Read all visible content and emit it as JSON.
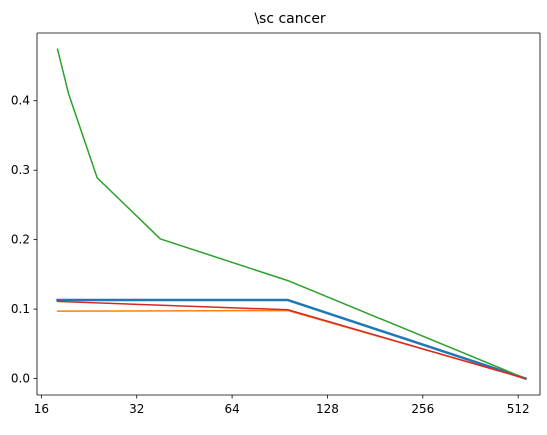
{
  "chart_data": {
    "type": "line",
    "title": "\\sc cancer",
    "xlabel": "",
    "ylabel": "",
    "x_scale": "log2",
    "xlim": [
      15.5,
      600
    ],
    "ylim": [
      -0.0237,
      0.4975
    ],
    "x_ticks": [
      16,
      32,
      64,
      128,
      256,
      512
    ],
    "x_tick_labels": [
      "16",
      "32",
      "64",
      "128",
      "256",
      "512"
    ],
    "y_ticks": [
      0.0,
      0.1,
      0.2,
      0.3,
      0.4
    ],
    "y_tick_labels": [
      "0.0",
      "0.1",
      "0.2",
      "0.3",
      "0.4"
    ],
    "grid": false,
    "legend": "none",
    "series": [
      {
        "color": "#1f77b4",
        "stroke_style": "thick",
        "x": [
          18,
          96,
          540
        ],
        "y": [
          0.113,
          0.113,
          0.0
        ]
      },
      {
        "color": "#ff7f0e",
        "stroke_style": "normal",
        "x": [
          18,
          96,
          540
        ],
        "y": [
          0.097,
          0.098,
          0.0
        ]
      },
      {
        "color": "#2ca02c",
        "stroke_style": "normal",
        "x": [
          18,
          19.5,
          24,
          38,
          96,
          540
        ],
        "y": [
          0.474,
          0.41,
          0.289,
          0.201,
          0.141,
          0.0
        ]
      },
      {
        "color": "#d62728",
        "stroke_style": "normal",
        "x": [
          18,
          96,
          540
        ],
        "y": [
          0.111,
          0.099,
          0.0
        ]
      }
    ]
  }
}
